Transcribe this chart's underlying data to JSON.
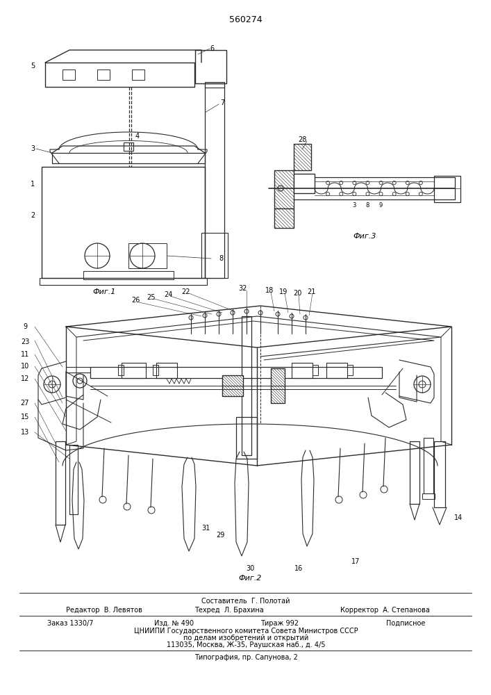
{
  "patent_number": "560274",
  "background_color": "#ffffff",
  "line_color": "#2a2a2a",
  "fig_width": 7.07,
  "fig_height": 10.0,
  "dpi": 100,
  "footer_sestavitel": "Составитель  Г. Полотай",
  "footer_editor": "Редактор  В. Левятов",
  "footer_tech": "Техред  Л. Брахина",
  "footer_corrector": "Корректор  А. Степанова",
  "footer_order": "Заказ 1330/7",
  "footer_pub": "Изд. № 490",
  "footer_print": "Тираж 992",
  "footer_stamp": "Подписное",
  "footer_org": "ЦНИИПИ Государственного комитета Совета Министров СССР",
  "footer_org2": "по делам изобретений и открытий",
  "footer_address": "113035, Москва, Ж-35, Раушская наб., д. 4/5",
  "footer_typo": "Типография, пр. Сапунова, 2",
  "fig1_label": "Фиг.1",
  "fig2_label": "Фиг.2",
  "fig3_label": "Фиг.3"
}
